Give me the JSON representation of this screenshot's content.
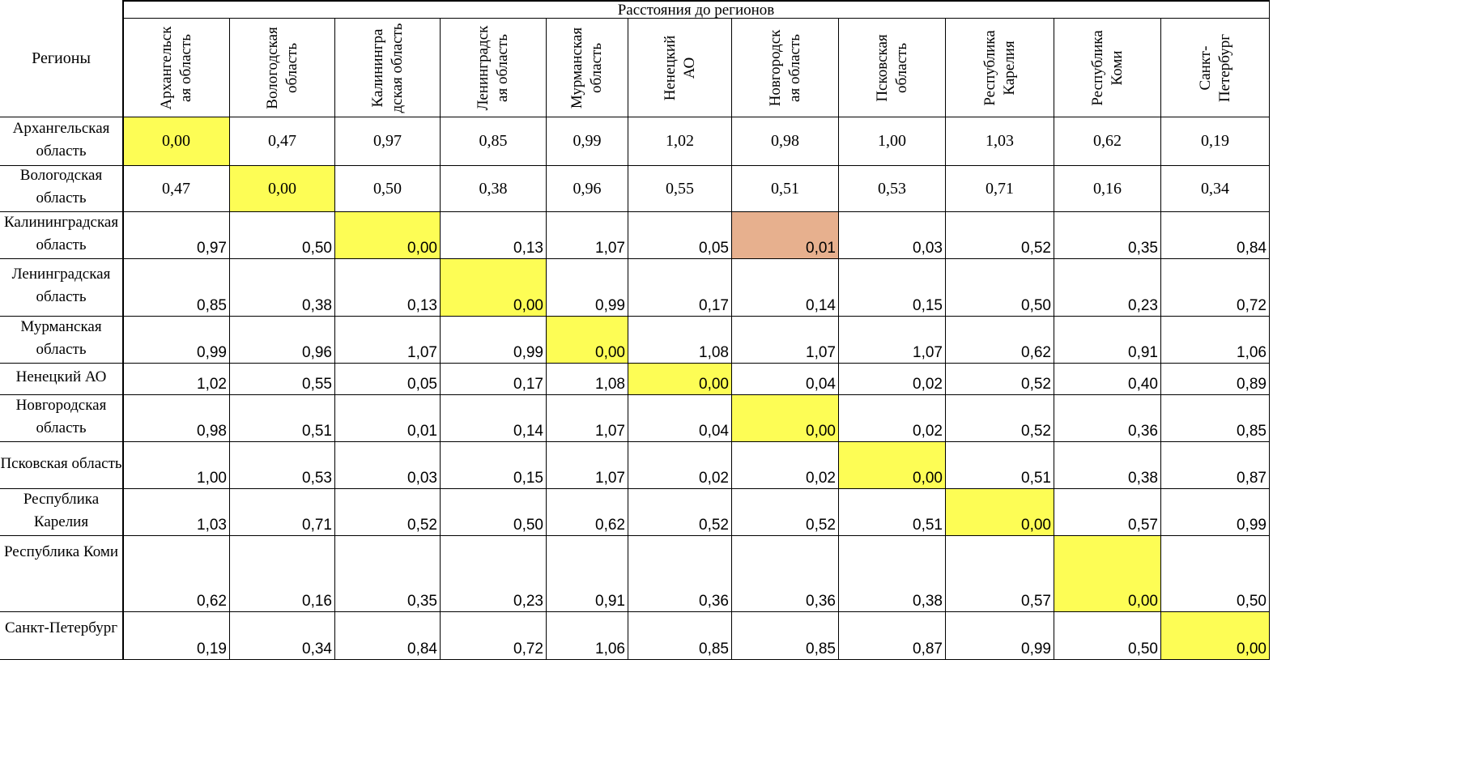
{
  "table": {
    "corner_label": "Регионы",
    "group_title": "Расстояния до регионов",
    "columns": [
      "Архангельская область",
      "Вологодская область",
      "Калининградская область",
      "Ленинградская область",
      "Мурманская область",
      "Ненецкий АО",
      "Новгородская область",
      "Псковская область",
      "Республика Карелия",
      "Республика Коми",
      "Санкт-Петербург"
    ],
    "column_header_lines": [
      [
        "Архангельск",
        "ая область"
      ],
      [
        "Вологодская",
        "область"
      ],
      [
        "Калинингра",
        "дская область"
      ],
      [
        "Ленинградск",
        "ая область"
      ],
      [
        "Мурманская",
        "область"
      ],
      [
        "Ненецкий",
        "АО"
      ],
      [
        "Новгородск",
        "ая область"
      ],
      [
        "Псковская",
        "область"
      ],
      [
        "Республика",
        "Карелия"
      ],
      [
        "Республика",
        "Коми"
      ],
      [
        "Санкт-",
        "Петербург"
      ]
    ],
    "rows": [
      {
        "label": "Архангельская область",
        "values": [
          "0,00",
          "0,47",
          "0,97",
          "0,85",
          "0,99",
          "1,02",
          "0,98",
          "1,00",
          "1,03",
          "0,62",
          "0,19"
        ]
      },
      {
        "label": "Вологодская область",
        "values": [
          "0,47",
          "0,00",
          "0,50",
          "0,38",
          "0,96",
          "0,55",
          "0,51",
          "0,53",
          "0,71",
          "0,16",
          "0,34"
        ]
      },
      {
        "label": "Калининградская область",
        "values": [
          "0,97",
          "0,50",
          "0,00",
          "0,13",
          "1,07",
          "0,05",
          "0,01",
          "0,03",
          "0,52",
          "0,35",
          "0,84"
        ]
      },
      {
        "label": "Ленинградская область",
        "values": [
          "0,85",
          "0,38",
          "0,13",
          "0,00",
          "0,99",
          "0,17",
          "0,14",
          "0,15",
          "0,50",
          "0,23",
          "0,72"
        ]
      },
      {
        "label": "Мурманская область",
        "values": [
          "0,99",
          "0,96",
          "1,07",
          "0,99",
          "0,00",
          "1,08",
          "1,07",
          "1,07",
          "0,62",
          "0,91",
          "1,06"
        ]
      },
      {
        "label": "Ненецкий АО",
        "values": [
          "1,02",
          "0,55",
          "0,05",
          "0,17",
          "1,08",
          "0,00",
          "0,04",
          "0,02",
          "0,52",
          "0,40",
          "0,89"
        ]
      },
      {
        "label": "Новгородская область",
        "values": [
          "0,98",
          "0,51",
          "0,01",
          "0,14",
          "1,07",
          "0,04",
          "0,00",
          "0,02",
          "0,52",
          "0,36",
          "0,85"
        ]
      },
      {
        "label": "Псковская область",
        "values": [
          "1,00",
          "0,53",
          "0,03",
          "0,15",
          "1,07",
          "0,02",
          "0,02",
          "0,00",
          "0,51",
          "0,38",
          "0,87"
        ]
      },
      {
        "label": "Республика Карелия",
        "values": [
          "1,03",
          "0,71",
          "0,52",
          "0,50",
          "0,62",
          "0,52",
          "0,52",
          "0,51",
          "0,00",
          "0,57",
          "0,99"
        ]
      },
      {
        "label": "Республика Коми",
        "values": [
          "0,62",
          "0,16",
          "0,35",
          "0,23",
          "0,91",
          "0,36",
          "0,36",
          "0,38",
          "0,57",
          "0,00",
          "0,50"
        ]
      },
      {
        "label": "Санкт-Петербург",
        "values": [
          "0,19",
          "0,34",
          "0,84",
          "0,72",
          "1,06",
          "0,85",
          "0,85",
          "0,87",
          "0,99",
          "0,50",
          "0,00"
        ]
      }
    ],
    "highlight_colors": {
      "diagonal": "#fdfd55",
      "minimum_offdiagonal": "#e7b08e"
    },
    "highlighted_minimum": {
      "row": 2,
      "col": 6
    }
  }
}
